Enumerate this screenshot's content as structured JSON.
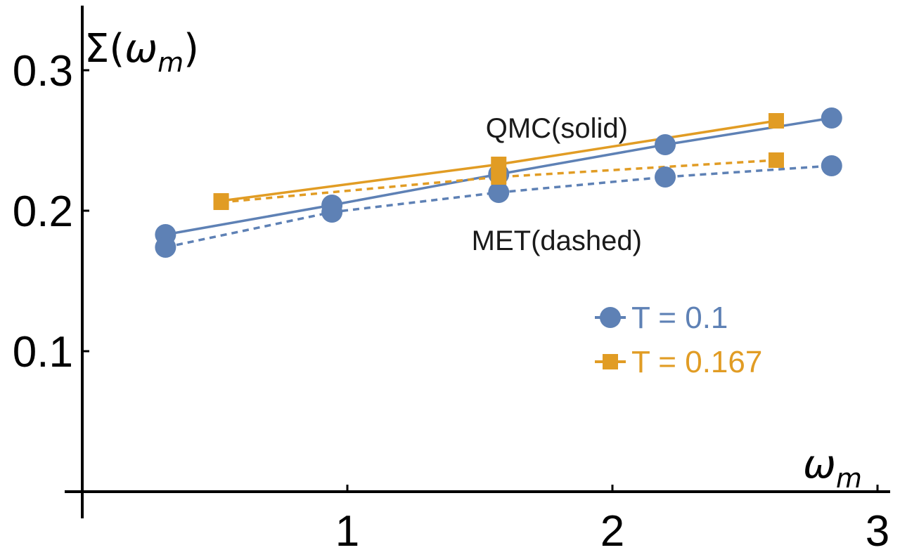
{
  "chart_data": {
    "type": "line",
    "title": "",
    "xlabel": {
      "base": "ω",
      "sub": "m"
    },
    "ylabel": {
      "prefix": "Σ(",
      "base": "ω",
      "sub": "m",
      "suffix": ")"
    },
    "xlim": [
      0,
      3
    ],
    "ylim": [
      0,
      0.34
    ],
    "xticks": [
      {
        "value": 1,
        "label": "1"
      },
      {
        "value": 2,
        "label": "2"
      },
      {
        "value": 3,
        "label": "3"
      }
    ],
    "yticks": [
      {
        "value": 0.1,
        "label": "0.1"
      },
      {
        "value": 0.2,
        "label": "0.2"
      },
      {
        "value": 0.3,
        "label": "0.3"
      }
    ],
    "grid": false,
    "legend_position": "right",
    "series": [
      {
        "name": "T = 0.1 QMC(solid)",
        "temperature": "T = 0.1",
        "method": "QMC",
        "line_style": "solid",
        "marker": "circle",
        "color": "#5E81B5",
        "x": [
          0.314,
          0.942,
          1.571,
          2.199,
          2.827
        ],
        "y": [
          0.183,
          0.204,
          0.226,
          0.247,
          0.266
        ]
      },
      {
        "name": "T = 0.1 MET(dashed)",
        "temperature": "T = 0.1",
        "method": "MET",
        "line_style": "dashed",
        "marker": "circle",
        "color": "#5E81B5",
        "x": [
          0.314,
          0.942,
          1.571,
          2.199,
          2.827
        ],
        "y": [
          0.174,
          0.199,
          0.213,
          0.224,
          0.232
        ]
      },
      {
        "name": "T = 0.167 QMC(solid)",
        "temperature": "T = 0.167",
        "method": "QMC",
        "line_style": "solid",
        "marker": "square",
        "color": "#E19C24",
        "x": [
          0.524,
          1.571,
          2.618
        ],
        "y": [
          0.207,
          0.233,
          0.264
        ]
      },
      {
        "name": "T = 0.167 MET(dashed)",
        "temperature": "T = 0.167",
        "method": "MET",
        "line_style": "dashed",
        "marker": "square",
        "color": "#E19C24",
        "x": [
          0.524,
          1.571,
          2.618
        ],
        "y": [
          0.206,
          0.224,
          0.236
        ]
      }
    ],
    "annotations": [
      {
        "text": "QMC(solid)",
        "x": 1.79,
        "y": 0.259
      },
      {
        "text": "MET(dashed)",
        "x": 1.79,
        "y": 0.179
      }
    ],
    "legend": [
      {
        "label": "T = 0.1",
        "marker": "circle",
        "color": "#5E81B5"
      },
      {
        "label": "T = 0.167",
        "marker": "square",
        "color": "#E19C24"
      }
    ]
  }
}
